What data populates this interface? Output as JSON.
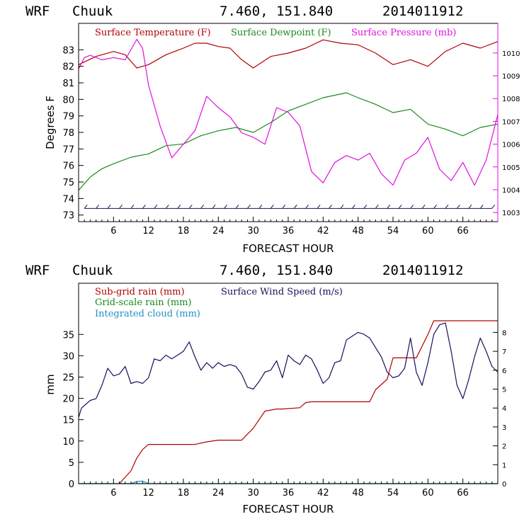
{
  "chart_data": [
    {
      "type": "line",
      "header": {
        "model": "WRF",
        "station": "Chuuk",
        "coords": "7.460, 151.840",
        "init": "2014011912"
      },
      "xlabel": "FORECAST HOUR",
      "ylabel": "Degrees F",
      "xlim": [
        0,
        72
      ],
      "ylim": [
        72.6,
        84.6
      ],
      "y2lim": [
        1002.6,
        1011.3
      ],
      "x_ticks": [
        "6",
        "12",
        "18",
        "24",
        "30",
        "36",
        "42",
        "48",
        "54",
        "60",
        "66"
      ],
      "y_ticks": [
        "73",
        "74",
        "75",
        "76",
        "77",
        "78",
        "79",
        "80",
        "81",
        "82",
        "83"
      ],
      "y2_ticks": [
        "1003",
        "1004",
        "1005",
        "1006",
        "1007",
        "1008",
        "1009",
        "1010"
      ],
      "series": [
        {
          "name": "Surface Temperature (F)",
          "axis": "left",
          "color": "#b00000",
          "x": [
            0,
            3,
            6,
            8,
            10,
            12,
            15,
            18,
            20,
            22,
            24,
            26,
            28,
            30,
            33,
            36,
            39,
            42,
            45,
            48,
            51,
            54,
            57,
            60,
            63,
            66,
            69,
            72
          ],
          "y": [
            82.1,
            82.6,
            82.9,
            82.7,
            81.9,
            82.1,
            82.7,
            83.1,
            83.4,
            83.4,
            83.2,
            83.1,
            82.4,
            81.9,
            82.6,
            82.8,
            83.1,
            83.6,
            83.4,
            83.3,
            82.8,
            82.1,
            82.4,
            82.0,
            82.9,
            83.4,
            83.1,
            83.5
          ]
        },
        {
          "name": "Surface Dewpoint (F)",
          "axis": "left",
          "color": "#1a8a1a",
          "x": [
            0,
            2,
            4,
            6,
            9,
            12,
            15,
            18,
            21,
            24,
            27,
            30,
            33,
            36,
            39,
            42,
            46,
            48,
            51,
            54,
            57,
            60,
            63,
            66,
            69,
            72
          ],
          "y": [
            74.5,
            75.3,
            75.8,
            76.1,
            76.5,
            76.7,
            77.2,
            77.3,
            77.8,
            78.1,
            78.3,
            78.0,
            78.6,
            79.3,
            79.7,
            80.1,
            80.4,
            80.1,
            79.7,
            79.2,
            79.4,
            78.5,
            78.2,
            77.8,
            78.3,
            78.5
          ]
        },
        {
          "name": "Surface Pressure (mb)",
          "axis": "right",
          "color": "#e010e0",
          "x": [
            0,
            1,
            2,
            4,
            6,
            8,
            10,
            11,
            12,
            14,
            16,
            18,
            20,
            22,
            24,
            26,
            28,
            30,
            32,
            34,
            36,
            38,
            40,
            42,
            44,
            46,
            48,
            50,
            52,
            54,
            56,
            58,
            60,
            62,
            64,
            66,
            68,
            70,
            72
          ],
          "y": [
            1009.3,
            1009.8,
            1009.9,
            1009.7,
            1009.8,
            1009.7,
            1010.6,
            1010.2,
            1008.6,
            1006.8,
            1005.4,
            1006.0,
            1006.6,
            1008.1,
            1007.6,
            1007.2,
            1006.5,
            1006.3,
            1006.0,
            1007.6,
            1007.4,
            1006.8,
            1004.8,
            1004.3,
            1005.2,
            1005.5,
            1005.3,
            1005.6,
            1004.7,
            1004.2,
            1005.3,
            1005.6,
            1006.3,
            1004.9,
            1004.4,
            1005.2,
            1004.2,
            1005.3,
            1007.3
          ]
        }
      ],
      "wind_barbs": {
        "color": "#1a0f5a",
        "x": [
          1,
          3,
          5,
          7,
          9,
          11,
          13,
          15,
          17,
          19,
          21,
          23,
          25,
          27,
          29,
          31,
          33,
          35,
          37,
          39,
          41,
          43,
          45,
          47,
          49,
          51,
          53,
          55,
          57,
          59,
          61,
          63,
          65,
          67,
          69,
          71
        ],
        "y": 73.4
      }
    },
    {
      "type": "line",
      "header": {
        "model": "WRF",
        "station": "Chuuk",
        "coords": "7.460, 151.840",
        "init": "2014011912"
      },
      "xlabel": "FORECAST HOUR",
      "ylabel": "mm",
      "xlim": [
        0,
        72
      ],
      "ylim": [
        0,
        47
      ],
      "y2lim": [
        0,
        10.6
      ],
      "x_ticks": [
        "6",
        "12",
        "18",
        "24",
        "30",
        "36",
        "42",
        "48",
        "54",
        "60",
        "66"
      ],
      "y_ticks": [
        "0",
        "5",
        "10",
        "15",
        "20",
        "25",
        "30",
        "35"
      ],
      "y2_ticks": [
        "0",
        "1",
        "2",
        "3",
        "4",
        "5",
        "6",
        "7",
        "8"
      ],
      "series": [
        {
          "name": "Sub-grid rain (mm)",
          "axis": "left",
          "color": "#b00000",
          "x": [
            7,
            9,
            10,
            11,
            12,
            20,
            22,
            24,
            28,
            30,
            32,
            34,
            35,
            38,
            39,
            40,
            50,
            51,
            53,
            54,
            58,
            60,
            61,
            72
          ],
          "y": [
            0,
            3,
            6,
            8,
            9.2,
            9.2,
            9.8,
            10.2,
            10.2,
            13,
            17,
            17.5,
            17.5,
            17.8,
            19,
            19.2,
            19.2,
            22,
            24.5,
            29.5,
            29.5,
            35,
            38.2,
            38.2
          ]
        },
        {
          "name": "Grid-scale rain (mm)",
          "axis": "left",
          "color": "#1a8a1a",
          "x": [
            0,
            72
          ],
          "y": [
            0,
            0
          ]
        },
        {
          "name": "Integrated cloud (mm)",
          "axis": "left",
          "color": "#1e90c8",
          "x": [
            0,
            9,
            10,
            11,
            12,
            72
          ],
          "y": [
            0,
            0,
            0.5,
            0.6,
            0,
            0
          ]
        },
        {
          "name": "Surface Wind Speed (m/s)",
          "axis": "right",
          "color": "#1a0f5a",
          "x": [
            0,
            0.5,
            2,
            3,
            4,
            5,
            6,
            7,
            8,
            9,
            10,
            11,
            12,
            13,
            14,
            15,
            16,
            17,
            18,
            19,
            20,
            21,
            22,
            23,
            24,
            25,
            26,
            27,
            28,
            29,
            30,
            31,
            32,
            33,
            34,
            35,
            36,
            37,
            38,
            39,
            40,
            41,
            42,
            43,
            44,
            45,
            46,
            47,
            48,
            49,
            50,
            51,
            52,
            53,
            54,
            55,
            56,
            57,
            58,
            59,
            60,
            61,
            62,
            63,
            64,
            65,
            66,
            67,
            68,
            69,
            70,
            71,
            72
          ],
          "y": [
            3.5,
            4.0,
            4.4,
            4.5,
            5.2,
            6.1,
            5.7,
            5.8,
            6.2,
            5.3,
            5.4,
            5.3,
            5.6,
            6.6,
            6.5,
            6.8,
            6.6,
            6.8,
            7.0,
            7.5,
            6.7,
            6.0,
            6.4,
            6.1,
            6.4,
            6.2,
            6.3,
            6.2,
            5.8,
            5.1,
            5.0,
            5.4,
            5.9,
            6.0,
            6.5,
            5.6,
            6.8,
            6.5,
            6.3,
            6.8,
            6.6,
            6.0,
            5.3,
            5.6,
            6.4,
            6.5,
            7.6,
            7.8,
            8.0,
            7.9,
            7.7,
            7.2,
            6.7,
            5.9,
            5.6,
            5.7,
            6.1,
            7.7,
            5.9,
            5.2,
            6.4,
            7.9,
            8.4,
            8.5,
            7.0,
            5.2,
            4.5,
            5.5,
            6.7,
            7.7,
            7.0,
            6.2,
            5.9
          ]
        }
      ]
    }
  ]
}
